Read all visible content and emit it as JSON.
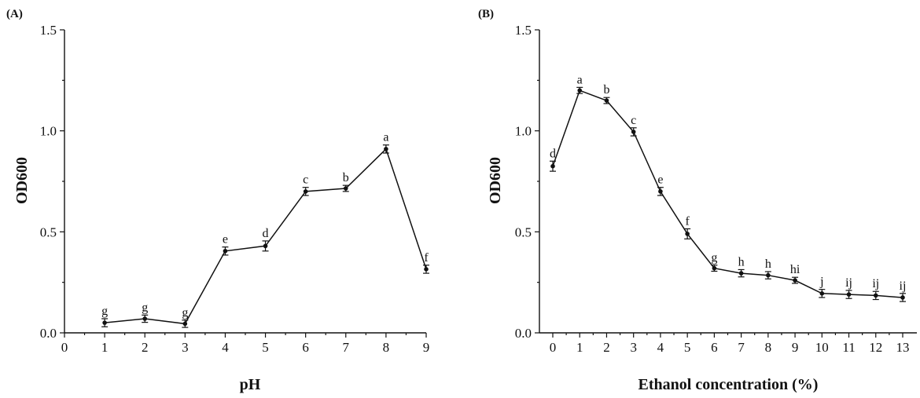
{
  "chart_data": [
    {
      "panel_label": "(A)",
      "type": "line",
      "xlabel": "pH",
      "ylabel": "OD600",
      "xlim": [
        0,
        9
      ],
      "ylim": [
        0,
        1.5
      ],
      "x_ticks": [
        "0",
        "1",
        "2",
        "3",
        "4",
        "5",
        "6",
        "7",
        "8",
        "9"
      ],
      "y_ticks": [
        "0.0",
        "0.5",
        "1.0",
        "1.5"
      ],
      "grid": false,
      "series": [
        {
          "x": [
            1,
            2,
            3,
            4,
            5,
            6,
            7,
            8,
            9
          ],
          "y": [
            0.05,
            0.07,
            0.045,
            0.405,
            0.43,
            0.7,
            0.715,
            0.91,
            0.315
          ],
          "error": [
            0.02,
            0.018,
            0.018,
            0.02,
            0.025,
            0.02,
            0.015,
            0.02,
            0.02
          ],
          "labels": [
            "g",
            "g",
            "g",
            "e",
            "d",
            "c",
            "b",
            "a",
            "f"
          ]
        }
      ]
    },
    {
      "panel_label": "(B)",
      "type": "line",
      "xlabel": "Ethanol concentration (%)",
      "ylabel": "OD600",
      "xlim": [
        0,
        13
      ],
      "ylim": [
        0,
        1.5
      ],
      "x_ticks": [
        "0",
        "1",
        "2",
        "3",
        "4",
        "5",
        "6",
        "7",
        "8",
        "9",
        "10",
        "11",
        "12",
        "13"
      ],
      "y_ticks": [
        "0.0",
        "0.5",
        "1.0",
        "1.5"
      ],
      "grid": false,
      "series": [
        {
          "x": [
            0,
            1,
            2,
            3,
            4,
            5,
            6,
            7,
            8,
            9,
            10,
            11,
            12,
            13
          ],
          "y": [
            0.825,
            1.2,
            1.15,
            0.995,
            0.7,
            0.49,
            0.32,
            0.295,
            0.285,
            0.26,
            0.195,
            0.19,
            0.185,
            0.175
          ],
          "error": [
            0.025,
            0.015,
            0.015,
            0.02,
            0.02,
            0.025,
            0.015,
            0.018,
            0.018,
            0.015,
            0.02,
            0.02,
            0.02,
            0.02
          ],
          "labels": [
            "d",
            "a",
            "b",
            "c",
            "e",
            "f",
            "g",
            "h",
            "h",
            "hi",
            "j",
            "ij",
            "ij",
            "ij"
          ]
        }
      ]
    }
  ]
}
